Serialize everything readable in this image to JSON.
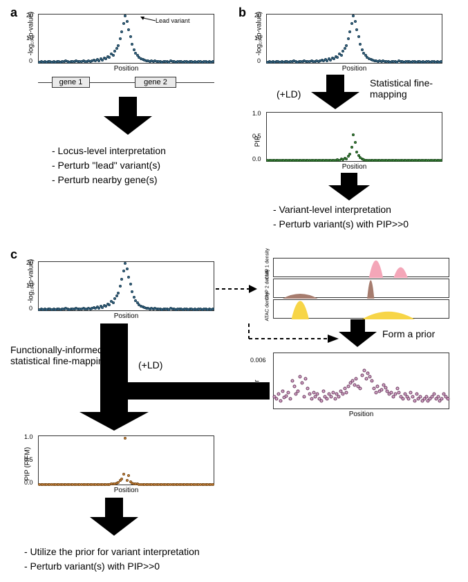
{
  "panelA": {
    "label": "a",
    "chart": {
      "ylabel": "-log₁₀(p-value)",
      "xlabel": "Position",
      "ylim": [
        0,
        22
      ],
      "yticks": [
        0,
        10,
        20
      ],
      "dot_color": "#3b6e8f",
      "dot_border": "#1a3d52",
      "dot_size": 4
    },
    "lead_label": "Lead variant",
    "gene1": "gene 1",
    "gene2": "gene 2",
    "bullets": [
      "- Locus-level interpretation",
      "- Perturb \"lead\" variant(s)",
      "- Perturb nearby gene(s)"
    ]
  },
  "panelB": {
    "label": "b",
    "ld_label": "(+LD)",
    "sfm_label": "Statistical fine-mapping",
    "pip_chart": {
      "ylabel": "PIP",
      "xlabel": "Position",
      "ylim": [
        0,
        1.0
      ],
      "yticks": [
        0.0,
        0.5,
        1.0
      ],
      "dot_color": "#3a8a3a",
      "dot_border": "#1d4d1d",
      "dot_size": 4
    },
    "bullets": [
      "- Variant-level interpretation",
      "- Perturb variant(s) with PIP>>0"
    ]
  },
  "panelC": {
    "label": "c",
    "ld_label": "(+LD)",
    "fifm_label": "Functionally-informed statistical fine-mapping",
    "form_prior_label": "Form a prior",
    "tracks": [
      {
        "label": "ChIP 1 density",
        "color": "#f4a6b8",
        "peaks": [
          {
            "x": 0.58,
            "w": 0.08,
            "h": 0.9
          },
          {
            "x": 0.72,
            "w": 0.08,
            "h": 0.55
          }
        ]
      },
      {
        "label": "ChIP 2 density",
        "color": "#a67c6e",
        "peaks": [
          {
            "x": 0.15,
            "w": 0.2,
            "h": 0.25
          },
          {
            "x": 0.55,
            "w": 0.04,
            "h": 0.95
          }
        ]
      },
      {
        "label": "ATAC density",
        "color": "#f7d547",
        "peaks": [
          {
            "x": 0.15,
            "w": 0.1,
            "h": 0.95
          },
          {
            "x": 0.65,
            "w": 0.3,
            "h": 0.4
          }
        ]
      }
    ],
    "prior_chart": {
      "ylabel": "Prior",
      "xlabel": "Position",
      "ylim": [
        0,
        0.007
      ],
      "yticks": [
        0.002,
        0.006
      ],
      "dot_color": "#d4a6c8",
      "dot_border": "#6b3a5e",
      "dot_size": 5
    },
    "pip_chart": {
      "ylabel": "PIP (FIFM)",
      "xlabel": "Position",
      "ylim": [
        0,
        1.0
      ],
      "yticks": [
        0.0,
        0.5,
        1.0
      ],
      "dot_color": "#d68a3a",
      "dot_border": "#7a4d1d",
      "dot_size": 4
    },
    "bullets": [
      "- Utilize the prior for variant interpretation",
      "- Perturb variant(s) with PIP>>0"
    ]
  },
  "manhattan_data": [
    0.4,
    0.5,
    0.3,
    0.7,
    0.4,
    0.6,
    0.5,
    0.3,
    0.6,
    0.4,
    0.5,
    0.7,
    0.4,
    0.6,
    0.5,
    0.8,
    0.6,
    0.4,
    0.7,
    0.5,
    0.6,
    0.8,
    0.5,
    0.7,
    0.6,
    0.9,
    0.7,
    0.5,
    1.0,
    0.7,
    0.8,
    1.2,
    0.9,
    1.5,
    1.1,
    1.8,
    1.4,
    2.2,
    1.8,
    2.8,
    2.5,
    4.0,
    3.5,
    5.5,
    6.5,
    8.0,
    11.0,
    14.0,
    18.0,
    21.5,
    19.0,
    15.0,
    12.0,
    8.5,
    6.0,
    4.5,
    3.5,
    2.5,
    2.0,
    1.5,
    1.2,
    0.9,
    0.8,
    0.7,
    0.9,
    0.6,
    0.8,
    0.5,
    0.7,
    0.6,
    0.4,
    0.7,
    0.5,
    0.6,
    0.4,
    0.8,
    0.5,
    0.6,
    0.4,
    0.7,
    0.5,
    0.6,
    0.4,
    0.5,
    0.7,
    0.4,
    0.6,
    0.5,
    0.3,
    0.6,
    0.4,
    0.5,
    0.7,
    0.4,
    0.6,
    0.5,
    0.3,
    0.6,
    0.4,
    0.5
  ],
  "pip_data": [
    0.01,
    0.01,
    0.01,
    0.01,
    0.01,
    0.01,
    0.01,
    0.01,
    0.01,
    0.01,
    0.01,
    0.01,
    0.01,
    0.01,
    0.01,
    0.01,
    0.01,
    0.01,
    0.01,
    0.01,
    0.01,
    0.01,
    0.01,
    0.01,
    0.01,
    0.01,
    0.01,
    0.01,
    0.01,
    0.01,
    0.01,
    0.01,
    0.01,
    0.01,
    0.01,
    0.01,
    0.02,
    0.01,
    0.02,
    0.01,
    0.03,
    0.02,
    0.04,
    0.03,
    0.06,
    0.05,
    0.1,
    0.15,
    0.28,
    0.55,
    0.38,
    0.18,
    0.12,
    0.07,
    0.05,
    0.03,
    0.02,
    0.02,
    0.01,
    0.01,
    0.01,
    0.01,
    0.01,
    0.01,
    0.01,
    0.01,
    0.01,
    0.01,
    0.01,
    0.01,
    0.01,
    0.01,
    0.01,
    0.01,
    0.01,
    0.01,
    0.01,
    0.01,
    0.01,
    0.01,
    0.01,
    0.01,
    0.01,
    0.01,
    0.01,
    0.01,
    0.01,
    0.01,
    0.01,
    0.01,
    0.01,
    0.01,
    0.01,
    0.01,
    0.01,
    0.01,
    0.01,
    0.01,
    0.01,
    0.01
  ],
  "prior_data": [
    0.0015,
    0.0012,
    0.0018,
    0.001,
    0.0022,
    0.0014,
    0.0016,
    0.002,
    0.0012,
    0.0035,
    0.0028,
    0.0018,
    0.0022,
    0.004,
    0.0032,
    0.0015,
    0.0038,
    0.0025,
    0.0018,
    0.0012,
    0.002,
    0.0015,
    0.0018,
    0.0012,
    0.001,
    0.0022,
    0.0015,
    0.0012,
    0.0018,
    0.0015,
    0.002,
    0.0012,
    0.0018,
    0.0015,
    0.0022,
    0.0018,
    0.0025,
    0.002,
    0.0028,
    0.0032,
    0.0035,
    0.003,
    0.0038,
    0.0028,
    0.0025,
    0.0042,
    0.0048,
    0.0038,
    0.0045,
    0.004,
    0.0035,
    0.0025,
    0.002,
    0.0028,
    0.0022,
    0.0024,
    0.003,
    0.0026,
    0.0022,
    0.0018,
    0.002,
    0.0015,
    0.0018,
    0.0025,
    0.002,
    0.0015,
    0.0012,
    0.0018,
    0.0015,
    0.0012,
    0.002,
    0.0015,
    0.001,
    0.0018,
    0.0012,
    0.0015,
    0.001,
    0.0012,
    0.0015,
    0.001,
    0.0012,
    0.0015,
    0.0018,
    0.0012,
    0.0015,
    0.001,
    0.0012,
    0.0018,
    0.0015,
    0.0012
  ],
  "fifm_data": [
    0.005,
    0.005,
    0.005,
    0.005,
    0.005,
    0.005,
    0.005,
    0.005,
    0.005,
    0.005,
    0.005,
    0.005,
    0.005,
    0.005,
    0.005,
    0.005,
    0.005,
    0.005,
    0.005,
    0.005,
    0.005,
    0.005,
    0.005,
    0.005,
    0.005,
    0.005,
    0.005,
    0.005,
    0.005,
    0.005,
    0.005,
    0.005,
    0.005,
    0.005,
    0.005,
    0.005,
    0.005,
    0.005,
    0.005,
    0.005,
    0.005,
    0.01,
    0.01,
    0.02,
    0.03,
    0.05,
    0.08,
    0.12,
    0.22,
    0.96,
    0.09,
    0.18,
    0.06,
    0.03,
    0.02,
    0.01,
    0.01,
    0.005,
    0.005,
    0.005,
    0.005,
    0.005,
    0.005,
    0.005,
    0.005,
    0.005,
    0.005,
    0.005,
    0.005,
    0.005,
    0.005,
    0.005,
    0.005,
    0.005,
    0.005,
    0.005,
    0.005,
    0.005,
    0.005,
    0.005,
    0.005,
    0.005,
    0.005,
    0.005,
    0.005,
    0.005,
    0.005,
    0.005,
    0.005,
    0.005,
    0.005,
    0.005,
    0.005,
    0.005,
    0.005,
    0.005,
    0.005,
    0.005,
    0.005,
    0.005
  ]
}
